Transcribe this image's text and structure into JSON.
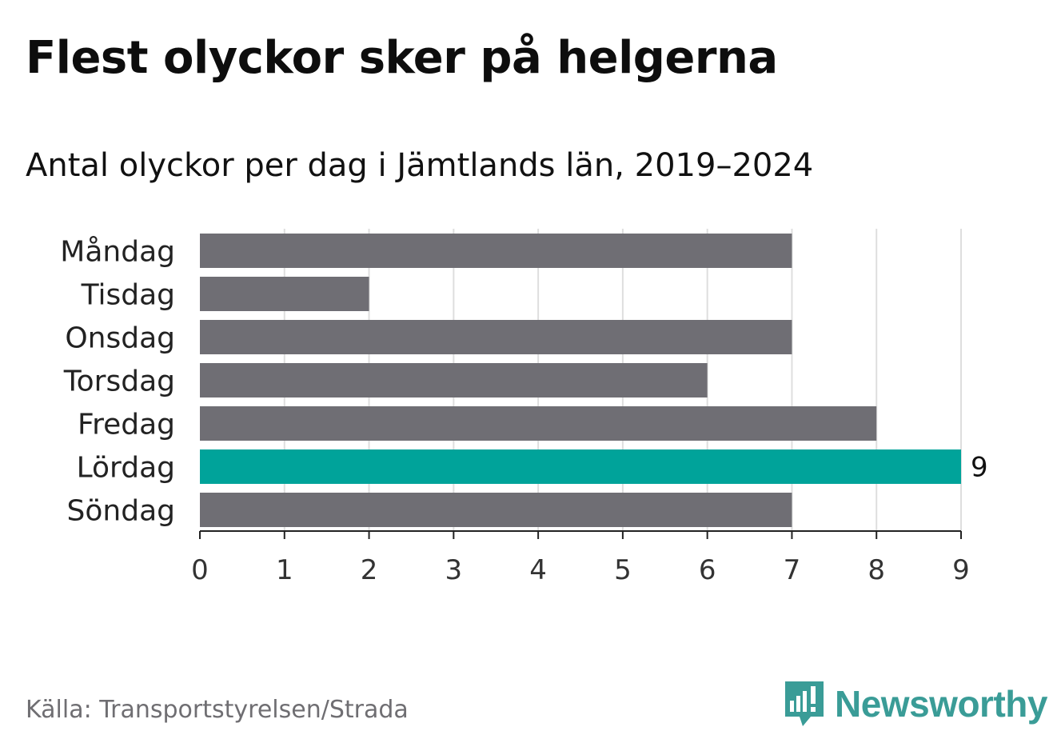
{
  "header": {
    "title": "Flest olyckor sker på helgerna",
    "subtitle": "Antal olyckor per dag i Jämtlands län, 2019–2024"
  },
  "footer": {
    "source": "Källa: Transportstyrelsen/Strada",
    "brand": "Newsworthy",
    "brand_icon": "newsworthy-logo-icon"
  },
  "colors": {
    "bar": "#6f6e74",
    "highlight": "#00a39a",
    "grid": "#dedede",
    "axis": "#222222",
    "brand": "#3a9c97"
  },
  "chart_data": {
    "type": "bar",
    "orientation": "horizontal",
    "categories": [
      "Måndag",
      "Tisdag",
      "Onsdag",
      "Torsdag",
      "Fredag",
      "Lördag",
      "Söndag"
    ],
    "values": [
      7,
      2,
      7,
      6,
      8,
      9,
      7
    ],
    "highlight_category": "Lördag",
    "data_labels": [
      {
        "category": "Lördag",
        "text": "9"
      }
    ],
    "xlim": [
      0,
      9
    ],
    "xticks": [
      0,
      1,
      2,
      3,
      4,
      5,
      6,
      7,
      8,
      9
    ],
    "grid": "vertical",
    "xlabel": "",
    "ylabel": ""
  }
}
